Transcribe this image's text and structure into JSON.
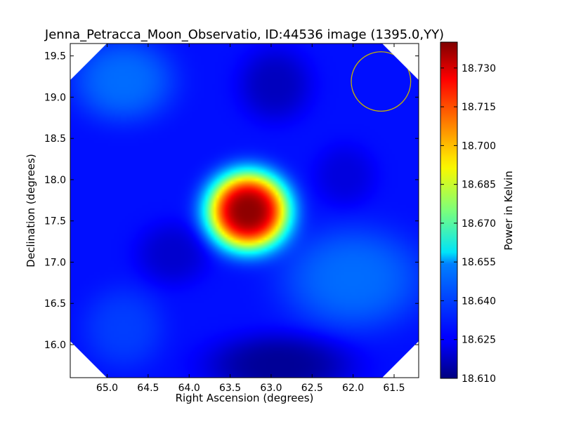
{
  "chart_data": {
    "type": "heatmap",
    "title": "Jenna_Petracca_Moon_Observatio, ID:44536 image (1395.0,YY)",
    "xlabel": "Right Ascension (degrees)",
    "ylabel": "Declination (degrees)",
    "xlim": [
      65.45,
      61.2
    ],
    "ylim": [
      15.6,
      19.65
    ],
    "x_ticks": [
      65.0,
      64.5,
      64.0,
      63.5,
      63.0,
      62.5,
      62.0,
      61.5
    ],
    "x_tick_labels": [
      "65.0",
      "64.5",
      "64.0",
      "63.5",
      "63.0",
      "62.5",
      "62.0",
      "61.5"
    ],
    "y_ticks": [
      16.0,
      16.5,
      17.0,
      17.5,
      18.0,
      18.5,
      19.0,
      19.5
    ],
    "y_tick_labels": [
      "16.0",
      "16.5",
      "17.0",
      "17.5",
      "18.0",
      "18.5",
      "19.0",
      "19.5"
    ],
    "colorbar": {
      "label": "Power in Kelvin",
      "range": [
        18.61,
        18.74
      ],
      "ticks": [
        18.61,
        18.625,
        18.64,
        18.655,
        18.67,
        18.685,
        18.7,
        18.715,
        18.73
      ],
      "tick_labels": [
        "18.610",
        "18.625",
        "18.640",
        "18.655",
        "18.670",
        "18.685",
        "18.700",
        "18.715",
        "18.730"
      ],
      "colormap": "jet"
    },
    "background_value": 18.628,
    "features": [
      {
        "ra": 63.28,
        "dec": 17.62,
        "value": 18.738,
        "sigma_ra": 0.4,
        "sigma_dec": 0.38
      },
      {
        "ra": 62.95,
        "dec": 19.15,
        "value": 18.618,
        "sigma_ra": 0.35,
        "sigma_dec": 0.35
      },
      {
        "ra": 64.2,
        "dec": 17.1,
        "value": 18.62,
        "sigma_ra": 0.35,
        "sigma_dec": 0.3
      },
      {
        "ra": 62.1,
        "dec": 18.05,
        "value": 18.622,
        "sigma_ra": 0.3,
        "sigma_dec": 0.3
      },
      {
        "ra": 62.9,
        "dec": 15.75,
        "value": 18.613,
        "sigma_ra": 0.7,
        "sigma_dec": 0.3
      },
      {
        "ra": 64.8,
        "dec": 19.2,
        "value": 18.64,
        "sigma_ra": 0.5,
        "sigma_dec": 0.4
      },
      {
        "ra": 62.0,
        "dec": 16.8,
        "value": 18.64,
        "sigma_ra": 0.7,
        "sigma_dec": 0.5
      },
      {
        "ra": 64.8,
        "dec": 16.2,
        "value": 18.634,
        "sigma_ra": 0.4,
        "sigma_dec": 0.4
      }
    ],
    "beam_circle": {
      "ra": 61.66,
      "dec": 19.19,
      "radius_deg": 0.36,
      "color": "#c8b400"
    }
  }
}
